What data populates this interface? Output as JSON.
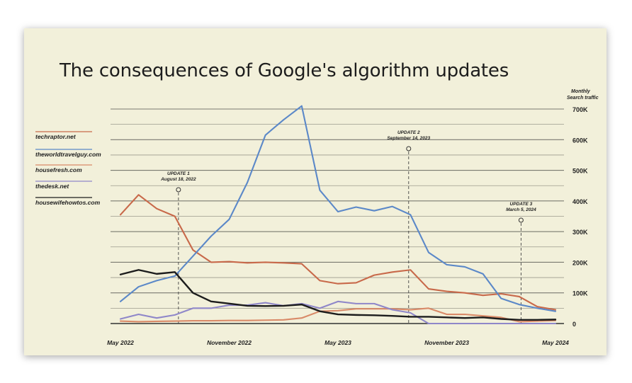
{
  "title": "The consequences of Google's algorithm updates",
  "chart_data": {
    "type": "line",
    "title": "The consequences of Google's algorithm updates",
    "ylabel": "Monthly Search traffic",
    "ylim": [
      0,
      700000
    ],
    "x": [
      0,
      1,
      2,
      3,
      4,
      5,
      6,
      7,
      8,
      9,
      10,
      11,
      12,
      13,
      14,
      15,
      16,
      17,
      18,
      19,
      20,
      21,
      22,
      23,
      24
    ],
    "x_tick_labels": [
      {
        "x": 0,
        "label": "May 2022"
      },
      {
        "x": 6,
        "label": "November 2022"
      },
      {
        "x": 12,
        "label": "May 2023"
      },
      {
        "x": 18,
        "label": "November 2023"
      },
      {
        "x": 24,
        "label": "May 2024"
      }
    ],
    "y_ticks": [
      0,
      100000,
      200000,
      300000,
      400000,
      500000,
      600000,
      700000
    ],
    "y_tick_labels": [
      "0",
      "100K",
      "200K",
      "300K",
      "400K",
      "500K",
      "600K",
      "700K"
    ],
    "series": [
      {
        "name": "techraptor.net",
        "color": "#c8694a",
        "values": [
          355000,
          420000,
          375000,
          350000,
          240000,
          200000,
          202000,
          198000,
          200000,
          198000,
          195000,
          140000,
          130000,
          133000,
          158000,
          168000,
          175000,
          113000,
          105000,
          100000,
          92000,
          97000,
          88000,
          55000,
          45000
        ]
      },
      {
        "name": "theworldtravelguy.com",
        "color": "#5b88c8",
        "values": [
          72000,
          120000,
          140000,
          155000,
          220000,
          285000,
          340000,
          460000,
          615000,
          665000,
          710000,
          435000,
          365000,
          380000,
          368000,
          382000,
          355000,
          232000,
          192000,
          185000,
          162000,
          82000,
          62000,
          50000,
          40000
        ]
      },
      {
        "name": "housefresh.com",
        "color": "#d98a68",
        "values": [
          8000,
          6000,
          7000,
          8000,
          9000,
          9000,
          10000,
          10000,
          11000,
          12000,
          18000,
          40000,
          42000,
          48000,
          48000,
          48000,
          45000,
          50000,
          30000,
          30000,
          25000,
          20000,
          6000,
          8000,
          10000
        ]
      },
      {
        "name": "thedesk.net",
        "color": "#8f87c9",
        "values": [
          15000,
          30000,
          18000,
          28000,
          50000,
          50000,
          60000,
          60000,
          68000,
          58000,
          65000,
          50000,
          72000,
          65000,
          65000,
          45000,
          35000,
          0,
          0,
          0,
          0,
          0,
          0,
          0,
          0
        ]
      },
      {
        "name": "housewifehowtos.com",
        "color": "#1c1c1c",
        "values": [
          160000,
          175000,
          162000,
          168000,
          100000,
          72000,
          65000,
          58000,
          57000,
          58000,
          62000,
          40000,
          30000,
          28000,
          27000,
          25000,
          22000,
          22000,
          20000,
          18000,
          20000,
          15000,
          12000,
          12000,
          13000
        ]
      }
    ],
    "annotations": [
      {
        "x": 3.2,
        "title": "UPDATE 1",
        "date": "August 18, 2022"
      },
      {
        "x": 15.9,
        "title": "UPDATE 2",
        "date": "September 14, 2023"
      },
      {
        "x": 22.1,
        "title": "UPDATE 3",
        "date": "March 5, 2024"
      }
    ],
    "legend_position": "left"
  }
}
